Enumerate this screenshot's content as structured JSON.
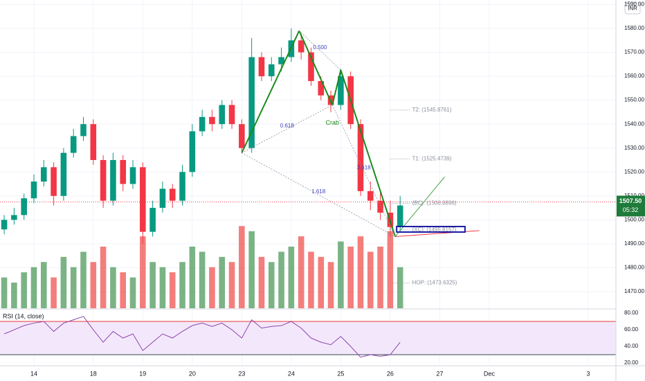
{
  "chart_data": {
    "type": "candlestick",
    "currency": "INR",
    "xlim": [
      -0.685,
      11.76
    ],
    "xticks": [
      {
        "value": 0,
        "label": "14"
      },
      {
        "value": 1.2,
        "label": "18"
      },
      {
        "value": 2.2,
        "label": "19"
      },
      {
        "value": 3.2,
        "label": "20"
      },
      {
        "value": 4.2,
        "label": "23"
      },
      {
        "value": 5.2,
        "label": "24"
      },
      {
        "value": 6.2,
        "label": "25"
      },
      {
        "value": 7.2,
        "label": "26"
      },
      {
        "value": 8.2,
        "label": "27"
      },
      {
        "value": 9.2,
        "label": "Dec"
      },
      {
        "value": 11.2,
        "label": "3"
      }
    ],
    "ylim": [
      1463.05,
      1591.87
    ],
    "yticks": [
      {
        "value": 1470,
        "label": "1470.00"
      },
      {
        "value": 1480,
        "label": "1480.00"
      },
      {
        "value": 1490,
        "label": "1490.00"
      },
      {
        "value": 1500,
        "label": "1500.00"
      },
      {
        "value": 1510,
        "label": "1510.00"
      },
      {
        "value": 1520,
        "label": "1520.00"
      },
      {
        "value": 1530,
        "label": "1530.00"
      },
      {
        "value": 1540,
        "label": "1540.00"
      },
      {
        "value": 1550,
        "label": "1550.00"
      },
      {
        "value": 1560,
        "label": "1560.00"
      },
      {
        "value": 1570,
        "label": "1570.00"
      },
      {
        "value": 1580,
        "label": "1580.00"
      },
      {
        "value": 1590,
        "label": "1590.00"
      }
    ],
    "grid": true,
    "up_color": "#089981",
    "down_color": "#f23645",
    "candles": {
      "x": [
        -0.6,
        -0.4,
        -0.2,
        0,
        0.2,
        0.4,
        0.6,
        0.8,
        1.0,
        1.2,
        1.4,
        1.6,
        1.8,
        2.0,
        2.2,
        2.4,
        2.6,
        2.8,
        3.0,
        3.2,
        3.4,
        3.6,
        3.8,
        4.0,
        4.2,
        4.4,
        4.6,
        4.8,
        5.0,
        5.2,
        5.4,
        5.6,
        5.8,
        6.0,
        6.2,
        6.4,
        6.6,
        6.8,
        7.0,
        7.2,
        7.4
      ],
      "open": [
        1496,
        1500,
        1502,
        1509,
        1516,
        1522,
        1510,
        1528,
        1535,
        1540,
        1525,
        1508,
        1525,
        1515,
        1522,
        1495,
        1505,
        1513,
        1508,
        1520,
        1537,
        1543,
        1540,
        1548,
        1540,
        1530,
        1568,
        1560,
        1565,
        1568,
        1575,
        1570,
        1558,
        1552,
        1548,
        1560,
        1540,
        1512,
        1508,
        1503,
        1497
      ],
      "high": [
        1502,
        1505,
        1511,
        1519,
        1525,
        1524,
        1530,
        1538,
        1543,
        1542,
        1527,
        1528,
        1527,
        1525,
        1524,
        1508,
        1516,
        1515,
        1523,
        1540,
        1546,
        1546,
        1550,
        1550,
        1542,
        1576,
        1570,
        1568,
        1572,
        1580,
        1577,
        1572,
        1560,
        1554,
        1563,
        1562,
        1542,
        1516,
        1512,
        1508,
        1510
      ],
      "low": [
        1494,
        1498,
        1500,
        1507,
        1514,
        1506,
        1508,
        1526,
        1533,
        1523,
        1505,
        1506,
        1512,
        1513,
        1490,
        1493,
        1503,
        1505,
        1506,
        1518,
        1535,
        1537,
        1538,
        1538,
        1528,
        1528,
        1558,
        1558,
        1562,
        1566,
        1567,
        1556,
        1550,
        1545,
        1546,
        1538,
        1510,
        1504,
        1500,
        1493,
        1495
      ],
      "close": [
        1500,
        1502,
        1509,
        1516,
        1522,
        1510,
        1528,
        1535,
        1540,
        1525,
        1508,
        1525,
        1515,
        1522,
        1495,
        1505,
        1513,
        1508,
        1520,
        1537,
        1543,
        1540,
        1548,
        1540,
        1530,
        1568,
        1560,
        1565,
        1568,
        1575,
        1570,
        1558,
        1552,
        1548,
        1560,
        1540,
        1512,
        1508,
        1503,
        1497,
        1506
      ]
    },
    "volume": {
      "ylim": [
        0,
        300
      ],
      "up_color": "#4f9a5c",
      "down_color": "#ef5350",
      "values": [
        30,
        25,
        35,
        40,
        45,
        30,
        50,
        40,
        55,
        45,
        60,
        40,
        35,
        30,
        70,
        45,
        40,
        35,
        45,
        60,
        55,
        40,
        50,
        45,
        80,
        75,
        50,
        45,
        55,
        60,
        70,
        55,
        50,
        45,
        65,
        60,
        70,
        55,
        60,
        75,
        40
      ]
    },
    "last_price": {
      "value": 1507.5,
      "label": "1507.50",
      "countdown": "05:32",
      "color": "#1e7b3a",
      "line_color": "#f23645"
    },
    "pattern": {
      "name": "Crab",
      "color": "#1b8a1b",
      "ratio_color": "#3f3fbf",
      "points": [
        {
          "x": 4.2,
          "y": 1528
        },
        {
          "x": 5.36,
          "y": 1579
        },
        {
          "x": 6.03,
          "y": 1548
        },
        {
          "x": 6.2,
          "y": 1562.6
        },
        {
          "x": 7.3,
          "y": 1493
        }
      ],
      "ratios": [
        "0.618",
        "0.500",
        "3.618",
        "1.618"
      ]
    },
    "targets": [
      {
        "label": "T2: (1545.8761)",
        "value": 1545.8761
      },
      {
        "label": "T1: (1525.4739)",
        "value": 1525.4739
      },
      {
        "label": "(BC): (1506.8896)",
        "value": 1506.8896
      },
      {
        "label": "(XC): (1495.8157)",
        "value": 1495.8157
      },
      {
        "label": "HOP: (1473.6325)",
        "value": 1473.6325
      }
    ],
    "projection": {
      "lines": [
        {
          "x": [
            7.3,
            8.3
          ],
          "y": [
            1493,
            1518
          ],
          "color": "#43a047"
        },
        {
          "x": [
            7.3,
            9.0
          ],
          "y": [
            1493,
            1495.5
          ],
          "color": "#f23645"
        }
      ],
      "box": {
        "x": [
          7.33,
          8.71
        ],
        "y": [
          1494.9,
          1497.2
        ],
        "color": "#1a1aa6"
      }
    },
    "rsi": {
      "title": "RSI (14, close)",
      "color": "#8e44ad",
      "ylim": [
        17.5,
        84.2
      ],
      "yticks": [
        {
          "value": 20,
          "label": "20.00"
        },
        {
          "value": 40,
          "label": "40.00"
        },
        {
          "value": 60,
          "label": "60.00"
        },
        {
          "value": 80,
          "label": "80.00"
        }
      ],
      "band": [
        30,
        70
      ],
      "values": [
        55,
        60,
        65,
        68,
        70,
        58,
        68,
        72,
        76,
        60,
        45,
        58,
        50,
        55,
        35,
        45,
        55,
        50,
        58,
        65,
        68,
        64,
        68,
        60,
        50,
        72,
        62,
        64,
        65,
        70,
        62,
        50,
        45,
        42,
        52,
        40,
        27,
        30,
        28,
        30,
        45
      ]
    }
  }
}
